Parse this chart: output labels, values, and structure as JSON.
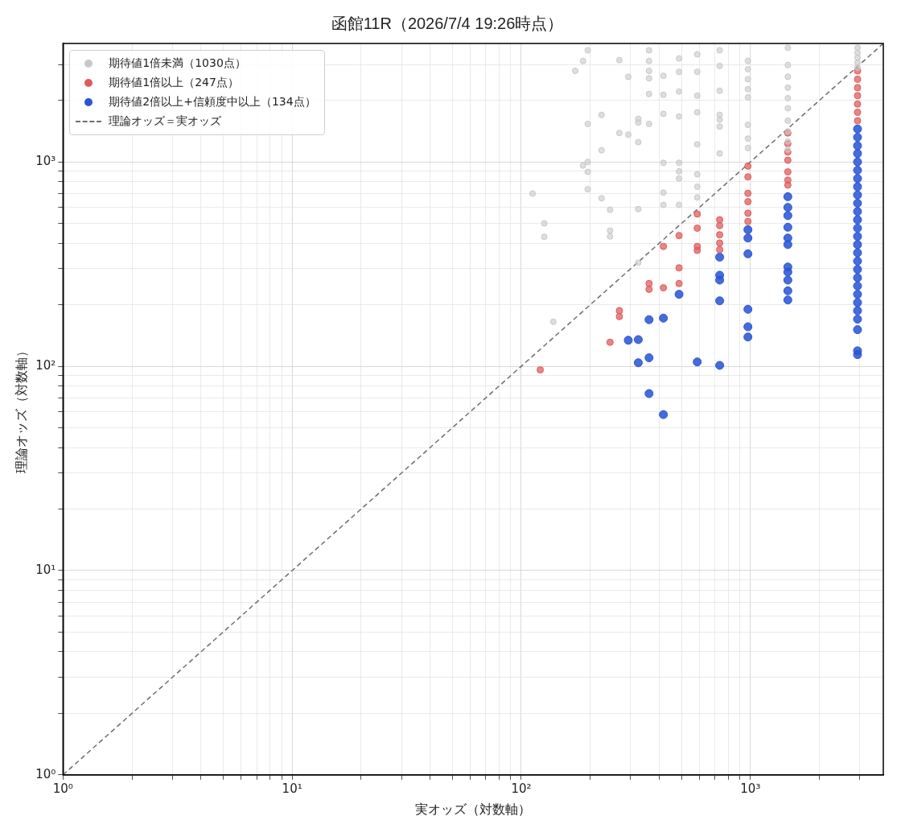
{
  "chart_data": {
    "type": "scatter",
    "title": "函館11R（2026/7/4 19:26時点）",
    "xlabel": "実オッズ（対数軸）",
    "ylabel": "理論オッズ（対数軸）",
    "log": "xy",
    "grid": true,
    "legend": "top left",
    "marker": "circle",
    "xlim": [
      1,
      3800
    ],
    "ylim": [
      1,
      3800
    ],
    "xticks": [
      {
        "value": 1,
        "label": "10⁰"
      },
      {
        "value": 2,
        "label": null
      },
      {
        "value": 3,
        "label": null
      },
      {
        "value": 4,
        "label": null
      },
      {
        "value": 5,
        "label": null
      },
      {
        "value": 6,
        "label": null
      },
      {
        "value": 7,
        "label": null
      },
      {
        "value": 8,
        "label": null
      },
      {
        "value": 9,
        "label": null
      },
      {
        "value": 10,
        "label": "10¹"
      },
      {
        "value": 20,
        "label": null
      },
      {
        "value": 30,
        "label": null
      },
      {
        "value": 40,
        "label": null
      },
      {
        "value": 50,
        "label": null
      },
      {
        "value": 60,
        "label": null
      },
      {
        "value": 70,
        "label": null
      },
      {
        "value": 80,
        "label": null
      },
      {
        "value": 90,
        "label": null
      },
      {
        "value": 100,
        "label": "10²"
      },
      {
        "value": 200,
        "label": null
      },
      {
        "value": 300,
        "label": null
      },
      {
        "value": 400,
        "label": null
      },
      {
        "value": 500,
        "label": null
      },
      {
        "value": 600,
        "label": null
      },
      {
        "value": 700,
        "label": null
      },
      {
        "value": 800,
        "label": null
      },
      {
        "value": 900,
        "label": null
      },
      {
        "value": 1000,
        "label": "10³"
      },
      {
        "value": 2000,
        "label": null
      },
      {
        "value": 3000,
        "label": null
      }
    ],
    "yticks": [
      {
        "value": 1,
        "label": "10⁰"
      },
      {
        "value": 2,
        "label": null
      },
      {
        "value": 3,
        "label": null
      },
      {
        "value": 4,
        "label": null
      },
      {
        "value": 5,
        "label": null
      },
      {
        "value": 6,
        "label": null
      },
      {
        "value": 7,
        "label": null
      },
      {
        "value": 8,
        "label": null
      },
      {
        "value": 9,
        "label": null
      },
      {
        "value": 10,
        "label": "10¹"
      },
      {
        "value": 20,
        "label": null
      },
      {
        "value": 30,
        "label": null
      },
      {
        "value": 40,
        "label": null
      },
      {
        "value": 50,
        "label": null
      },
      {
        "value": 60,
        "label": null
      },
      {
        "value": 70,
        "label": null
      },
      {
        "value": 80,
        "label": null
      },
      {
        "value": 90,
        "label": null
      },
      {
        "value": 100,
        "label": "10²"
      },
      {
        "value": 200,
        "label": null
      },
      {
        "value": 300,
        "label": null
      },
      {
        "value": 400,
        "label": null
      },
      {
        "value": 500,
        "label": null
      },
      {
        "value": 600,
        "label": null
      },
      {
        "value": 700,
        "label": null
      },
      {
        "value": 800,
        "label": null
      },
      {
        "value": 900,
        "label": null
      },
      {
        "value": 1000,
        "label": "10³"
      },
      {
        "value": 2000,
        "label": null
      },
      {
        "value": 3000,
        "label": null
      }
    ],
    "series": [
      {
        "name": "期待値1倍未満（1030点）",
        "color": "#c8c8c8",
        "x": [
          112,
          126,
          126,
          138,
          172,
          186,
          195,
          195,
          195,
          195,
          195,
          186,
          224,
          224,
          224,
          244,
          244,
          244,
          268,
          268,
          293,
          293,
          324,
          324,
          324,
          324,
          324,
          361,
          361,
          361,
          361,
          361,
          361,
          417,
          417,
          417,
          417,
          417,
          417,
          488,
          488,
          488,
          488,
          488,
          488,
          488,
          488,
          586,
          586,
          586,
          586,
          586,
          586,
          586,
          586,
          734,
          734,
          734,
          734,
          734,
          734,
          734,
          975,
          975,
          975,
          975,
          975,
          975,
          975,
          975,
          1456,
          1456,
          1456,
          1456,
          1456,
          1456,
          1456,
          1456,
          1456,
          1456,
          2933,
          2933,
          2933,
          2933,
          2933
        ],
        "values": [
          700,
          500,
          430,
          165,
          2790,
          3120,
          3520,
          1535,
          1000,
          894,
          735,
          960,
          1700,
          1140,
          664,
          583,
          461,
          432,
          3150,
          1385,
          2610,
          1360,
          1625,
          1560,
          1250,
          588,
          321,
          3520,
          3120,
          2790,
          2565,
          2150,
          1535,
          2640,
          2130,
          1720,
          990,
          708,
          616,
          3210,
          2760,
          2210,
          1670,
          990,
          900,
          830,
          616,
          3360,
          2760,
          2110,
          1750,
          1220,
          870,
          756,
          670,
          3520,
          2950,
          2230,
          1700,
          1610,
          1490,
          1100,
          3120,
          2840,
          2540,
          2270,
          2070,
          1520,
          1300,
          1170,
          3620,
          2980,
          2610,
          2310,
          2050,
          1830,
          1590,
          1410,
          1260,
          1150,
          3620,
          3420,
          3240,
          3060,
          2900
        ]
      },
      {
        "name": "期待値1倍以上（247点）",
        "color": "#e05a5a",
        "x": [
          121,
          244,
          268,
          268,
          361,
          361,
          417,
          417,
          488,
          488,
          488,
          586,
          586,
          586,
          586,
          734,
          734,
          734,
          734,
          734,
          975,
          975,
          975,
          975,
          975,
          975,
          1456,
          1456,
          1456,
          1456,
          1456,
          1456,
          1456,
          2933,
          2933,
          2933,
          2933,
          2933,
          2933,
          2933
        ],
        "values": [
          96,
          131,
          187,
          175,
          254,
          238,
          386,
          242,
          436,
          303,
          254,
          556,
          474,
          386,
          369,
          521,
          488,
          440,
          401,
          372,
          954,
          845,
          702,
          639,
          561,
          511,
          1385,
          1228,
          1118,
          1019,
          894,
          815,
          770,
          2790,
          2540,
          2310,
          2110,
          1920,
          1750,
          1590
        ]
      },
      {
        "name": "期待値2倍以上+信頼度中以上（134点）",
        "color": "#2a55d6",
        "x": [
          293,
          324,
          324,
          361,
          361,
          361,
          417,
          417,
          488,
          586,
          734,
          734,
          734,
          734,
          734,
          975,
          975,
          975,
          975,
          975,
          975,
          1456,
          1456,
          1456,
          1456,
          1456,
          1456,
          1456,
          1456,
          1456,
          1456,
          1456,
          2933,
          2933,
          2933,
          2933,
          2933,
          2933,
          2933,
          2933,
          2933,
          2933,
          2933,
          2933,
          2933,
          2933,
          2933,
          2933,
          2933,
          2933,
          2933,
          2933,
          2933,
          2933,
          2933,
          2933,
          2933,
          2933,
          2933
        ],
        "values": [
          134,
          135,
          104,
          169,
          110,
          73.5,
          172,
          58,
          225,
          105,
          342,
          279,
          264,
          209,
          101,
          466,
          424,
          355,
          190,
          156,
          139,
          676,
          599,
          546,
          479,
          424,
          394,
          306,
          289,
          264,
          234,
          211,
          1450,
          1320,
          1200,
          1100,
          1000,
          911,
          830,
          756,
          689,
          628,
          572,
          521,
          474,
          432,
          394,
          359,
          327,
          298,
          271,
          247,
          225,
          205,
          187,
          170,
          151,
          119,
          114
        ]
      },
      {
        "name": "理論オッズ＝実オッズ",
        "type": "line",
        "color": "#6e6e6e",
        "line_style": "dashed",
        "marker": "none",
        "x": [
          1,
          3800
        ],
        "values": [
          1,
          3800
        ]
      }
    ]
  }
}
